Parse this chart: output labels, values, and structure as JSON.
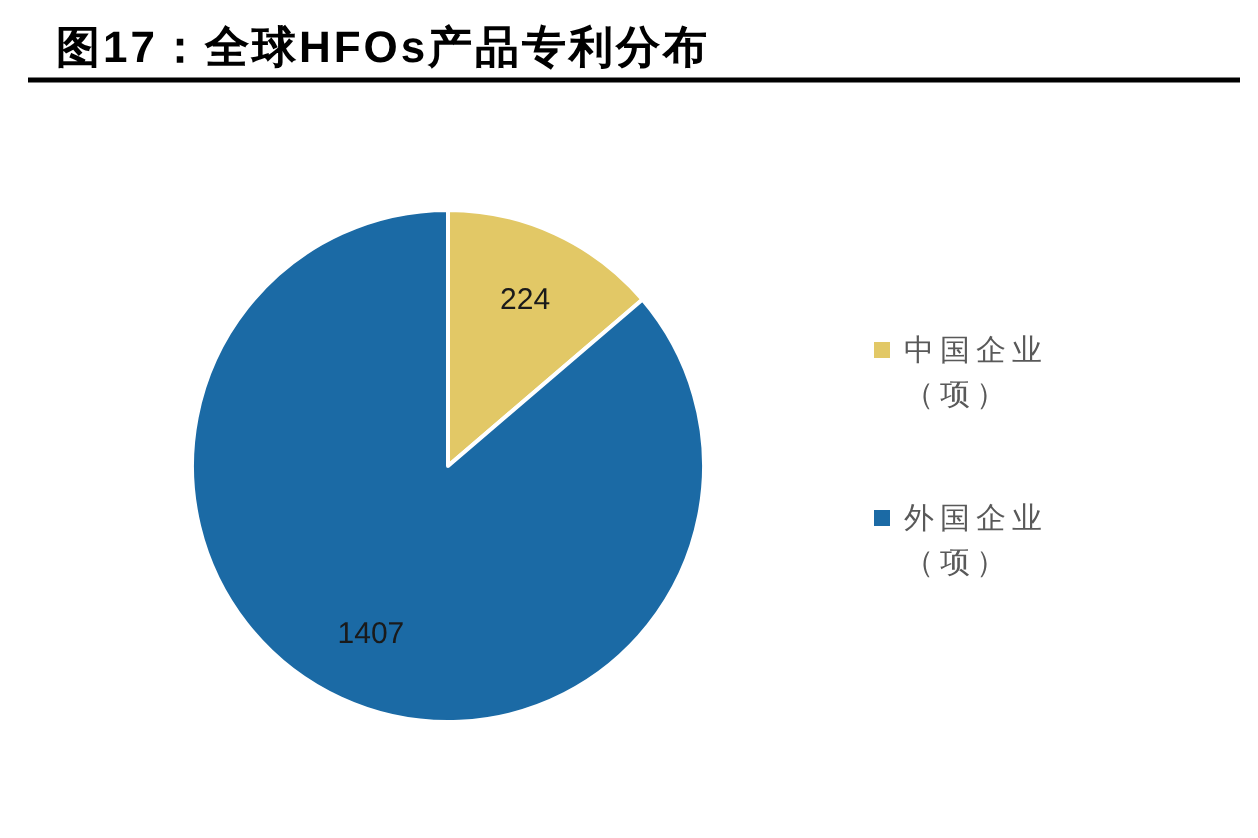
{
  "chart_data": {
    "type": "pie",
    "title": "图17：全球HFOs产品专利分布",
    "categories": [
      "中国企业（项）",
      "外国企业（项）"
    ],
    "values": [
      224,
      1407
    ],
    "colors": [
      "#e2c866",
      "#1b6aa5"
    ],
    "data_labels": true,
    "legend": "right"
  }
}
